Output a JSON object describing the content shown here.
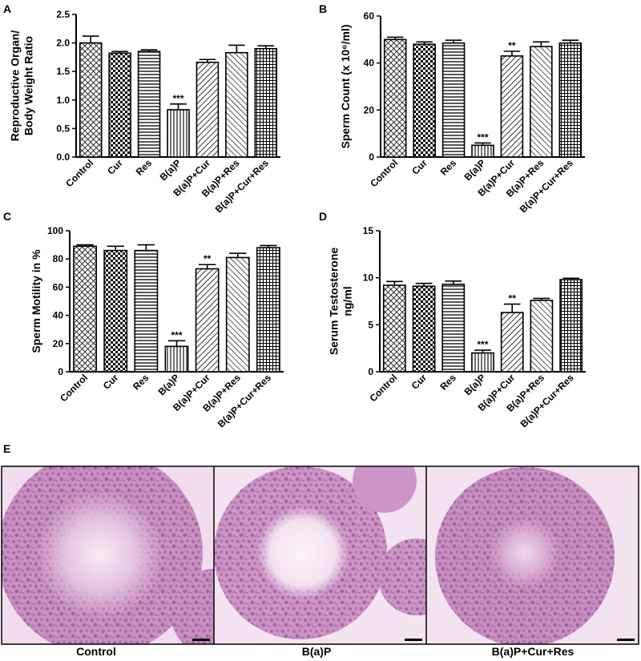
{
  "figure": {
    "panel_e_letter": "E",
    "micrographs": [
      {
        "caption": "Control",
        "tone": "#c990c2"
      },
      {
        "caption": "B(a)P",
        "tone": "#cc95c6"
      },
      {
        "caption": "B(a)P+Cur+Res",
        "tone": "#c78ec0"
      }
    ]
  },
  "chart_data": [
    {
      "type": "bar",
      "panel": "A",
      "ylabel_lines": [
        "Reproductive Organ/",
        "Body Weight Ratio"
      ],
      "categories": [
        "Control",
        "Cur",
        "Res",
        "B(a)P",
        "B(a)P+Cur",
        "B(a)P+Res",
        "B(a)P+Cur+Res"
      ],
      "values": [
        2.0,
        1.82,
        1.85,
        0.83,
        1.66,
        1.83,
        1.9
      ],
      "errors": [
        0.12,
        0.03,
        0.03,
        0.1,
        0.05,
        0.13,
        0.05
      ],
      "significance": [
        "",
        "",
        "",
        "***",
        "",
        "",
        ""
      ],
      "ylim": [
        0,
        2.5
      ],
      "yticks": [
        "0.0",
        "0.5",
        "1.0",
        "1.5",
        "2.0",
        "2.5"
      ],
      "grid": false
    },
    {
      "type": "bar",
      "panel": "B",
      "ylabel_lines": [
        "Sperm Count (x 10⁶/ml)"
      ],
      "categories": [
        "Control",
        "Cur",
        "Res",
        "B(a)P",
        "B(a)P+Cur",
        "B(a)P+Res",
        "B(a)P+Cur+Res"
      ],
      "values": [
        50,
        48,
        48.5,
        5,
        43,
        47,
        48.5
      ],
      "errors": [
        1,
        1,
        1.2,
        1,
        2,
        2,
        1.2
      ],
      "significance": [
        "",
        "",
        "",
        "***",
        "**",
        "",
        ""
      ],
      "ylim": [
        0,
        60
      ],
      "yticks": [
        "0",
        "20",
        "40",
        "60"
      ],
      "grid": false
    },
    {
      "type": "bar",
      "panel": "C",
      "ylabel_lines": [
        "Sperm Motility in %"
      ],
      "categories": [
        "Control",
        "Cur",
        "Res",
        "B(a)P",
        "B(a)P+Cur",
        "B(a)P+Res",
        "B(a)P+Cur+Res"
      ],
      "values": [
        89,
        86,
        86,
        18,
        73,
        81,
        88
      ],
      "errors": [
        1,
        3,
        4,
        4,
        3,
        3,
        1.5
      ],
      "significance": [
        "",
        "",
        "",
        "***",
        "**",
        "",
        ""
      ],
      "ylim": [
        0,
        100
      ],
      "yticks": [
        "0",
        "20",
        "40",
        "60",
        "80",
        "100"
      ],
      "grid": false
    },
    {
      "type": "bar",
      "panel": "D",
      "ylabel_lines": [
        "Serum Testosterone",
        "ng/ml"
      ],
      "categories": [
        "Control",
        "Cur",
        "Res",
        "B(a)P",
        "B(a)P+Cur",
        "B(a)P+Res",
        "B(a)P+Cur+Res"
      ],
      "values": [
        9.2,
        9.1,
        9.3,
        2.0,
        6.3,
        7.6,
        9.8
      ],
      "errors": [
        0.4,
        0.3,
        0.35,
        0.3,
        0.9,
        0.2,
        0.15
      ],
      "significance": [
        "",
        "",
        "",
        "***",
        "**",
        "",
        ""
      ],
      "ylim": [
        0,
        15
      ],
      "yticks": [
        "0",
        "5",
        "10",
        "15"
      ],
      "grid": false
    }
  ]
}
